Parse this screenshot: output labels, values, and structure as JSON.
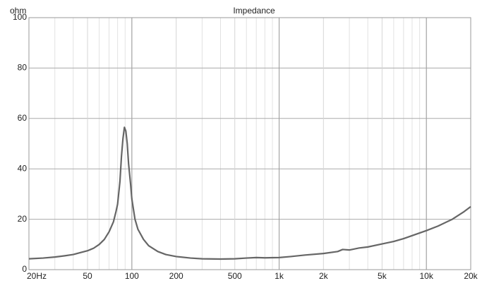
{
  "chart_data": {
    "type": "line",
    "title": "Impedance",
    "y_label": "ohm",
    "x_log": true,
    "grid": true,
    "x": [
      20,
      25,
      30,
      35,
      40,
      45,
      50,
      55,
      60,
      65,
      70,
      75,
      78,
      80,
      83,
      85,
      87,
      89,
      91,
      93,
      95,
      98,
      100,
      105,
      110,
      120,
      130,
      150,
      170,
      200,
      250,
      300,
      400,
      500,
      600,
      700,
      800,
      1000,
      1200,
      1500,
      2000,
      2500,
      2700,
      3000,
      3500,
      4000,
      5000,
      6000,
      7000,
      8000,
      10000,
      12000,
      15000,
      18000,
      20000
    ],
    "series": [
      {
        "name": "Impedance",
        "color": "#666666",
        "values": [
          4.3,
          4.6,
          5.0,
          5.5,
          6.0,
          6.8,
          7.5,
          8.5,
          10,
          12,
          15,
          19,
          23,
          26,
          35,
          45,
          52,
          56.5,
          55,
          50,
          42,
          34,
          28,
          20,
          16,
          12,
          9.5,
          7.2,
          6,
          5.2,
          4.6,
          4.3,
          4.2,
          4.3,
          4.6,
          4.8,
          4.7,
          4.8,
          5.2,
          5.8,
          6.4,
          7.2,
          8.0,
          7.8,
          8.6,
          9.0,
          10.2,
          11.2,
          12.3,
          13.5,
          15.5,
          17.3,
          20.0,
          23.0,
          25
        ]
      }
    ],
    "xlim": [
      20,
      20000
    ],
    "ylim": [
      0,
      100
    ],
    "xticks": [
      {
        "value": 20,
        "label": "20Hz"
      },
      50,
      100,
      200,
      500,
      {
        "value": 1000,
        "label": "1k"
      },
      {
        "value": 2000,
        "label": "2k"
      },
      {
        "value": 5000,
        "label": "5k"
      },
      {
        "value": 10000,
        "label": "10k"
      },
      {
        "value": 20000,
        "label": "20k"
      }
    ],
    "major_xgrid": [
      100,
      1000,
      10000
    ],
    "minor_xgrid": [
      30,
      40,
      60,
      70,
      80,
      90,
      300,
      400,
      600,
      700,
      800,
      900,
      3000,
      4000,
      6000,
      7000,
      8000,
      9000
    ],
    "yticks": [
      0,
      20,
      40,
      60,
      80,
      100
    ]
  }
}
